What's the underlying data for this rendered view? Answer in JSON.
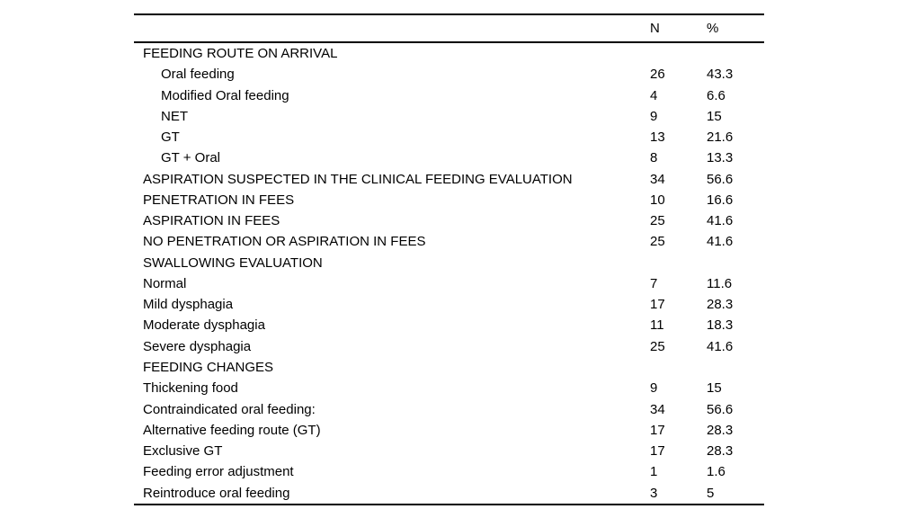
{
  "table": {
    "columns": {
      "n": "N",
      "pct": "%"
    },
    "rows": [
      {
        "label": "FEEDING ROUTE ON ARRIVAL",
        "n": "",
        "pct": "",
        "indent": false
      },
      {
        "label": "Oral feeding",
        "n": "26",
        "pct": "43.3",
        "indent": true
      },
      {
        "label": "Modified Oral feeding",
        "n": "4",
        "pct": "6.6",
        "indent": true
      },
      {
        "label": "NET",
        "n": "9",
        "pct": "15",
        "indent": true
      },
      {
        "label": "GT",
        "n": "13",
        "pct": "21.6",
        "indent": true
      },
      {
        "label": "GT + Oral",
        "n": "8",
        "pct": "13.3",
        "indent": true
      },
      {
        "label": "ASPIRATION SUSPECTED IN THE CLINICAL FEEDING EVALUATION",
        "n": "34",
        "pct": "56.6",
        "indent": false
      },
      {
        "label": "PENETRATION IN FEES",
        "n": "10",
        "pct": "16.6",
        "indent": false
      },
      {
        "label": "ASPIRATION IN FEES",
        "n": "25",
        "pct": "41.6",
        "indent": false
      },
      {
        "label": "NO PENETRATION OR ASPIRATION IN FEES",
        "n": "25",
        "pct": "41.6",
        "indent": false
      },
      {
        "label": "SWALLOWING EVALUATION",
        "n": "",
        "pct": "",
        "indent": false
      },
      {
        "label": "Normal",
        "n": "7",
        "pct": "11.6",
        "indent": false
      },
      {
        "label": "Mild dysphagia",
        "n": "17",
        "pct": "28.3",
        "indent": false
      },
      {
        "label": "Moderate dysphagia",
        "n": "11",
        "pct": "18.3",
        "indent": false
      },
      {
        "label": "Severe dysphagia",
        "n": "25",
        "pct": "41.6",
        "indent": false
      },
      {
        "label": "FEEDING CHANGES",
        "n": "",
        "pct": "",
        "indent": false
      },
      {
        "label": "Thickening food",
        "n": "9",
        "pct": "15",
        "indent": false
      },
      {
        "label": "Contraindicated oral feeding:",
        "n": "34",
        "pct": "56.6",
        "indent": false
      },
      {
        "label": "Alternative feeding route (GT)",
        "n": "17",
        "pct": "28.3",
        "indent": false
      },
      {
        "label": "Exclusive GT",
        "n": "17",
        "pct": "28.3",
        "indent": false
      },
      {
        "label": "Feeding error adjustment",
        "n": "1",
        "pct": "1.6",
        "indent": false
      },
      {
        "label": "Reintroduce oral feeding",
        "n": "3",
        "pct": "5",
        "indent": false
      }
    ]
  }
}
